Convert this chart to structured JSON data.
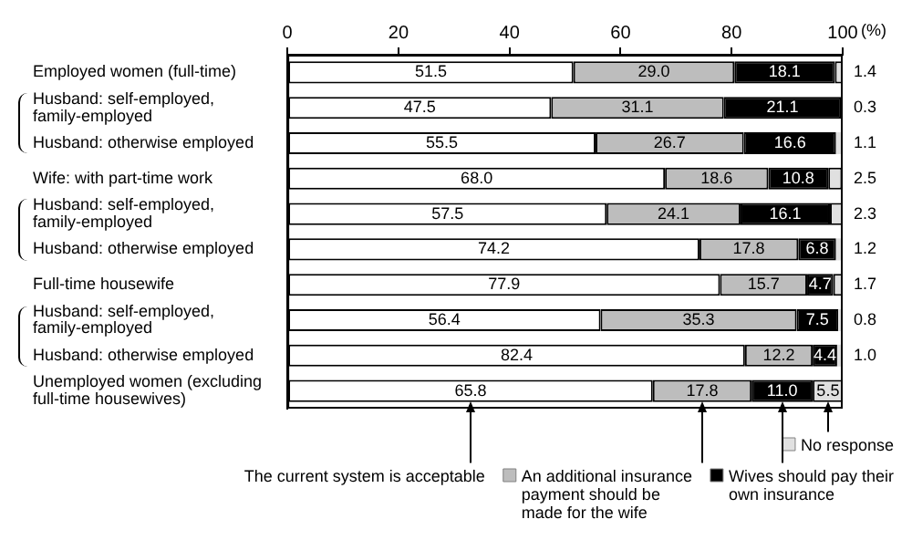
{
  "chart_data": {
    "type": "bar",
    "orientation": "horizontal",
    "stacked": true,
    "xlabel": "(%)",
    "categories": [
      "Employed women (full-time)",
      "Husband: self-employed, family-employed",
      "Husband: otherwise employed",
      "Wife: with part-time work",
      "Husband: self-employed, family-employed",
      "Husband: otherwise employed",
      "Full-time housewife",
      "Husband: self-employed, family-employed",
      "Husband: otherwise employed",
      "Unemployed women (excluding full-time housewives)"
    ],
    "series": [
      {
        "name": "The current system is acceptable",
        "color": "#ffffff",
        "values": [
          51.5,
          47.5,
          55.5,
          68.0,
          57.5,
          74.2,
          77.9,
          56.4,
          82.4,
          65.8
        ],
        "value_labels": [
          "51.5",
          "47.5",
          "55.5",
          "68.0",
          "57.5",
          "74.2",
          "77.9",
          "56.4",
          "82.4",
          "65.8"
        ]
      },
      {
        "name": "An additional insurance payment should be made for the wife",
        "color": "#bdbdbd",
        "values": [
          29.0,
          31.1,
          26.7,
          18.6,
          24.1,
          17.8,
          15.7,
          35.3,
          12.2,
          17.8
        ],
        "value_labels": [
          "29.0",
          "31.1",
          "26.7",
          "18.6",
          "24.1",
          "17.8",
          "15.7",
          "35.3",
          "12.2",
          "17.8"
        ]
      },
      {
        "name": "Wives should pay their own insurance",
        "color": "#000000",
        "values": [
          18.1,
          21.1,
          16.6,
          10.8,
          16.1,
          6.8,
          4.7,
          7.5,
          4.4,
          11.0
        ],
        "value_labels": [
          "18.1",
          "21.1",
          "16.6",
          "10.8",
          "16.1",
          "6.8",
          "4.7",
          "7.5",
          "4.4",
          "11.0"
        ]
      },
      {
        "name": "No response",
        "color": "#e0e0e0",
        "values": [
          1.4,
          0.3,
          1.1,
          2.5,
          2.3,
          1.2,
          1.7,
          0.8,
          1.0,
          5.5
        ],
        "value_labels": [
          "1.4",
          "0.3",
          "1.1",
          "2.5",
          "2.3",
          "1.2",
          "1.7",
          "0.8",
          "1.0",
          "5.5"
        ]
      }
    ],
    "xlim": [
      0,
      100
    ],
    "xticks": [
      0,
      20,
      40,
      60,
      80,
      100
    ],
    "grid": false,
    "legend": "bottom"
  }
}
